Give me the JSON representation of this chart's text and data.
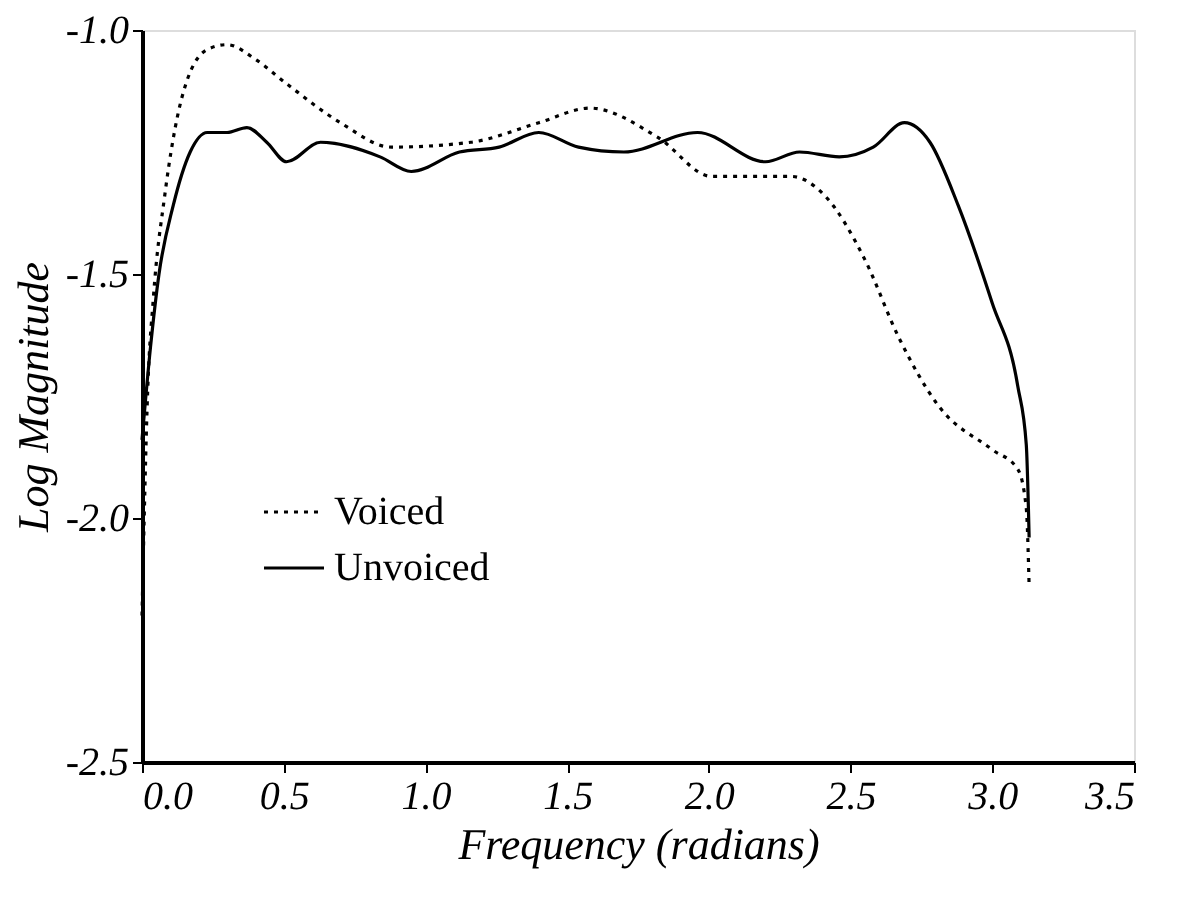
{
  "chart_data": {
    "type": "line",
    "xlabel": "Frequency (radians)",
    "ylabel": "Log Magnitude",
    "xlim": [
      0,
      3.5
    ],
    "ylim": [
      -2.5,
      -1.0
    ],
    "xticks": [
      {
        "value": 0,
        "label": "0.0"
      },
      {
        "value": 0.5,
        "label": "0.5"
      },
      {
        "value": 1.0,
        "label": "1.0"
      },
      {
        "value": 1.5,
        "label": "1.5"
      },
      {
        "value": 2.0,
        "label": "2.0"
      },
      {
        "value": 2.5,
        "label": "2.5"
      },
      {
        "value": 3.0,
        "label": "3.0"
      },
      {
        "value": 3.5,
        "label": "3.5"
      }
    ],
    "yticks": [
      {
        "value": -2.5,
        "label": "-2.5"
      },
      {
        "value": -2.0,
        "label": "-2.0"
      },
      {
        "value": -1.5,
        "label": "-1.5"
      },
      {
        "value": -1.0,
        "label": "-1.0"
      }
    ],
    "grid": false,
    "legend": "left",
    "series": [
      {
        "name": "Voiced",
        "color": "#000000",
        "line_style": "dotted",
        "x": [
          0,
          0.02,
          0.04,
          0.08,
          0.14,
          0.23,
          0.3,
          0.4,
          0.51,
          0.7,
          0.88,
          1.16,
          1.4,
          1.58,
          1.82,
          2.01,
          2.29,
          2.41,
          2.55,
          2.67,
          2.81,
          3.0,
          3.09,
          3.12,
          3.13
        ],
        "values": [
          -2.2,
          -1.74,
          -1.55,
          -1.34,
          -1.14,
          -1.04,
          -1.03,
          -1.06,
          -1.11,
          -1.19,
          -1.24,
          -1.23,
          -1.19,
          -1.16,
          -1.22,
          -1.3,
          -1.3,
          -1.34,
          -1.47,
          -1.63,
          -1.77,
          -1.86,
          -1.9,
          -1.98,
          -2.14
        ]
      },
      {
        "name": "Unvoiced",
        "color": "#000000",
        "line_style": "solid",
        "x": [
          0,
          0.03,
          0.06,
          0.11,
          0.17,
          0.23,
          0.3,
          0.37,
          0.44,
          0.51,
          0.63,
          0.84,
          0.95,
          1.12,
          1.26,
          1.4,
          1.54,
          1.7,
          1.96,
          2.2,
          2.32,
          2.46,
          2.58,
          2.69,
          2.78,
          2.88,
          3.0,
          3.09,
          3.12,
          3.13
        ],
        "values": [
          -1.84,
          -1.65,
          -1.5,
          -1.36,
          -1.25,
          -1.21,
          -1.21,
          -1.2,
          -1.23,
          -1.27,
          -1.23,
          -1.26,
          -1.29,
          -1.25,
          -1.24,
          -1.21,
          -1.24,
          -1.25,
          -1.21,
          -1.27,
          -1.25,
          -1.26,
          -1.24,
          -1.19,
          -1.23,
          -1.36,
          -1.56,
          -1.73,
          -1.85,
          -2.04
        ]
      }
    ]
  }
}
